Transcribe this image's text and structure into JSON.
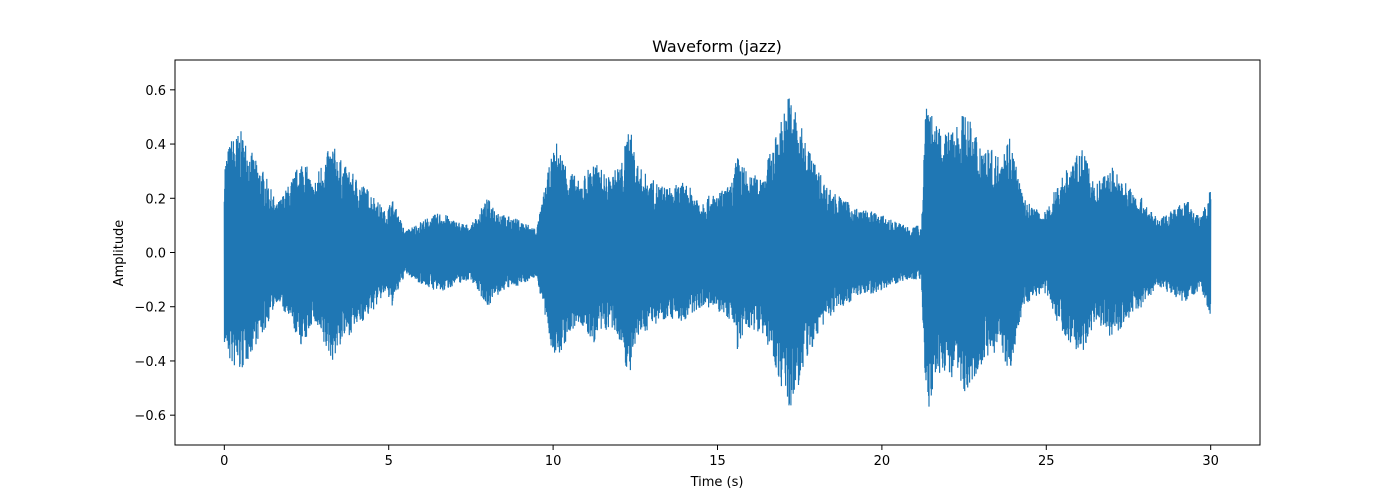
{
  "chart_data": {
    "type": "area",
    "title": "Waveform (jazz)",
    "xlabel": "Time (s)",
    "ylabel": "Amplitude",
    "xlim": [
      -1.5,
      31.5
    ],
    "ylim": [
      -0.71,
      0.71
    ],
    "xticks": [
      0,
      5,
      10,
      15,
      20,
      25,
      30
    ],
    "yticks": [
      -0.6,
      -0.4,
      -0.2,
      0.0,
      0.2,
      0.4,
      0.6
    ],
    "xtick_labels": [
      "0",
      "5",
      "10",
      "15",
      "20",
      "25",
      "30"
    ],
    "ytick_labels": [
      "−0.6",
      "−0.4",
      "−0.2",
      "0.0",
      "0.2",
      "0.4",
      "0.6"
    ],
    "grid": false,
    "line_color": "#1f77b4",
    "series": [
      {
        "values_note": "",
        "envelope": [
          [
            0.0,
            0.34,
            -0.34
          ],
          [
            0.2,
            0.42,
            -0.42
          ],
          [
            0.5,
            0.45,
            -0.45
          ],
          [
            0.8,
            0.38,
            -0.38
          ],
          [
            1.0,
            0.33,
            -0.33
          ],
          [
            1.2,
            0.3,
            -0.3
          ],
          [
            1.6,
            0.18,
            -0.18
          ],
          [
            2.0,
            0.26,
            -0.26
          ],
          [
            2.4,
            0.36,
            -0.36
          ],
          [
            2.7,
            0.25,
            -0.25
          ],
          [
            3.0,
            0.35,
            -0.35
          ],
          [
            3.3,
            0.4,
            -0.4
          ],
          [
            3.6,
            0.33,
            -0.33
          ],
          [
            4.0,
            0.28,
            -0.28
          ],
          [
            4.5,
            0.22,
            -0.22
          ],
          [
            4.9,
            0.15,
            -0.15
          ],
          [
            5.1,
            0.2,
            -0.2
          ],
          [
            5.5,
            0.08,
            -0.08
          ],
          [
            5.9,
            0.11,
            -0.11
          ],
          [
            6.2,
            0.13,
            -0.13
          ],
          [
            6.6,
            0.15,
            -0.15
          ],
          [
            7.0,
            0.12,
            -0.12
          ],
          [
            7.5,
            0.1,
            -0.1
          ],
          [
            8.0,
            0.2,
            -0.2
          ],
          [
            8.5,
            0.14,
            -0.14
          ],
          [
            9.0,
            0.12,
            -0.12
          ],
          [
            9.5,
            0.09,
            -0.09
          ],
          [
            9.9,
            0.33,
            -0.33
          ],
          [
            10.1,
            0.41,
            -0.41
          ],
          [
            10.4,
            0.33,
            -0.33
          ],
          [
            10.8,
            0.26,
            -0.26
          ],
          [
            11.2,
            0.34,
            -0.34
          ],
          [
            11.7,
            0.28,
            -0.28
          ],
          [
            12.1,
            0.34,
            -0.34
          ],
          [
            12.3,
            0.48,
            -0.48
          ],
          [
            12.6,
            0.32,
            -0.32
          ],
          [
            13.0,
            0.27,
            -0.27
          ],
          [
            13.5,
            0.24,
            -0.24
          ],
          [
            14.0,
            0.26,
            -0.26
          ],
          [
            14.5,
            0.2,
            -0.2
          ],
          [
            15.0,
            0.22,
            -0.22
          ],
          [
            15.4,
            0.25,
            -0.25
          ],
          [
            15.6,
            0.36,
            -0.36
          ],
          [
            16.0,
            0.28,
            -0.28
          ],
          [
            16.4,
            0.3,
            -0.3
          ],
          [
            16.8,
            0.44,
            -0.44
          ],
          [
            17.2,
            0.6,
            -0.6
          ],
          [
            17.5,
            0.48,
            -0.48
          ],
          [
            17.9,
            0.35,
            -0.35
          ],
          [
            18.3,
            0.25,
            -0.25
          ],
          [
            18.8,
            0.2,
            -0.2
          ],
          [
            19.3,
            0.16,
            -0.16
          ],
          [
            19.8,
            0.15,
            -0.15
          ],
          [
            20.3,
            0.12,
            -0.12
          ],
          [
            20.8,
            0.1,
            -0.1
          ],
          [
            21.2,
            0.1,
            -0.1
          ],
          [
            21.35,
            0.64,
            -0.64
          ],
          [
            21.6,
            0.47,
            -0.47
          ],
          [
            22.0,
            0.44,
            -0.44
          ],
          [
            22.5,
            0.52,
            -0.52
          ],
          [
            23.0,
            0.42,
            -0.42
          ],
          [
            23.5,
            0.36,
            -0.36
          ],
          [
            23.9,
            0.44,
            -0.44
          ],
          [
            24.3,
            0.2,
            -0.2
          ],
          [
            24.7,
            0.16,
            -0.16
          ],
          [
            25.0,
            0.15,
            -0.15
          ],
          [
            25.3,
            0.25,
            -0.25
          ],
          [
            25.7,
            0.33,
            -0.33
          ],
          [
            26.1,
            0.38,
            -0.38
          ],
          [
            26.5,
            0.25,
            -0.25
          ],
          [
            27.0,
            0.32,
            -0.32
          ],
          [
            27.5,
            0.25,
            -0.25
          ],
          [
            28.0,
            0.19,
            -0.19
          ],
          [
            28.4,
            0.12,
            -0.12
          ],
          [
            28.8,
            0.16,
            -0.16
          ],
          [
            29.3,
            0.19,
            -0.19
          ],
          [
            29.7,
            0.13,
            -0.13
          ],
          [
            30.0,
            0.24,
            -0.24
          ]
        ]
      }
    ]
  }
}
